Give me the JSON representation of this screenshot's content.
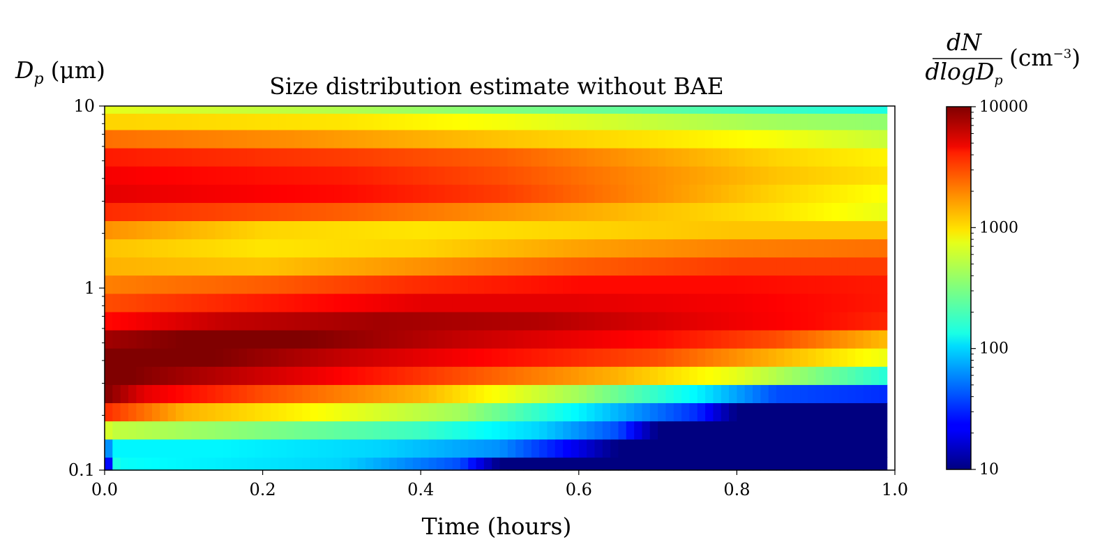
{
  "chart_data": {
    "type": "heatmap",
    "title": "Size distribution estimate without BAE",
    "xlabel": "Time (hours)",
    "ylabel": {
      "symbol": "D",
      "subscript": "p",
      "unit": "(μm)"
    },
    "colorbar_label": {
      "numerator": "dN",
      "denominator_prefix": "dlogD",
      "denominator_subscript": "p",
      "unit": "(cm",
      "unit_exponent": "−3",
      "unit_close": ")"
    },
    "colormap": "jet",
    "xlim": [
      0.0,
      1.0
    ],
    "ylim": [
      0.1,
      10
    ],
    "yscale": "log",
    "color_scale": "log",
    "clim": [
      10,
      10000
    ],
    "x_ticks": [
      "0.0",
      "0.2",
      "0.4",
      "0.6",
      "0.8",
      "1.0"
    ],
    "y_ticks": [
      "0.1",
      "1",
      "10"
    ],
    "colorbar_ticks": [
      "10",
      "100",
      "1000",
      "10000"
    ],
    "grid": false,
    "time_columns": 100,
    "diameter_bins_um": [
      0.105,
      0.132,
      0.166,
      0.209,
      0.263,
      0.331,
      0.417,
      0.525,
      0.661,
      0.832,
      1.05,
      1.32,
      1.66,
      2.09,
      2.63,
      3.31,
      4.17,
      5.25,
      6.61,
      8.32,
      10.0
    ],
    "log10_concentration_profiles": [
      {
        "d": 0.105,
        "pts": [
          [
            0.0,
            1.0
          ],
          [
            0.015,
            2.2
          ],
          [
            0.02,
            2.15
          ],
          [
            0.1,
            2.1
          ],
          [
            0.3,
            2.0
          ],
          [
            0.45,
            1.6
          ],
          [
            0.5,
            1.0
          ],
          [
            1.0,
            1.0
          ]
        ]
      },
      {
        "d": 0.132,
        "pts": [
          [
            0.0,
            1.5
          ],
          [
            0.01,
            2.1
          ],
          [
            0.15,
            2.1
          ],
          [
            0.35,
            2.0
          ],
          [
            0.5,
            1.8
          ],
          [
            0.6,
            1.3
          ],
          [
            0.65,
            1.0
          ],
          [
            1.0,
            1.0
          ]
        ]
      },
      {
        "d": 0.166,
        "pts": [
          [
            0.0,
            2.8
          ],
          [
            0.01,
            2.7
          ],
          [
            0.2,
            2.5
          ],
          [
            0.4,
            2.3
          ],
          [
            0.55,
            2.0
          ],
          [
            0.65,
            1.6
          ],
          [
            0.7,
            1.0
          ],
          [
            1.0,
            1.0
          ]
        ]
      },
      {
        "d": 0.209,
        "pts": [
          [
            0.0,
            3.5
          ],
          [
            0.1,
            3.1
          ],
          [
            0.25,
            2.9
          ],
          [
            0.45,
            2.6
          ],
          [
            0.6,
            2.1
          ],
          [
            0.75,
            1.5
          ],
          [
            0.8,
            1.0
          ],
          [
            1.0,
            1.0
          ]
        ]
      },
      {
        "d": 0.263,
        "pts": [
          [
            0.0,
            4.0
          ],
          [
            0.05,
            3.7
          ],
          [
            0.2,
            3.4
          ],
          [
            0.4,
            3.1
          ],
          [
            0.6,
            2.6
          ],
          [
            0.75,
            2.1
          ],
          [
            0.85,
            1.6
          ],
          [
            1.0,
            1.5
          ]
        ]
      },
      {
        "d": 0.331,
        "pts": [
          [
            0.0,
            4.05
          ],
          [
            0.1,
            3.9
          ],
          [
            0.25,
            3.7
          ],
          [
            0.45,
            3.4
          ],
          [
            0.65,
            3.1
          ],
          [
            0.8,
            2.8
          ],
          [
            0.9,
            2.5
          ],
          [
            1.0,
            2.2
          ]
        ]
      },
      {
        "d": 0.417,
        "pts": [
          [
            0.0,
            4.1
          ],
          [
            0.1,
            4.05
          ],
          [
            0.3,
            3.8
          ],
          [
            0.5,
            3.6
          ],
          [
            0.7,
            3.4
          ],
          [
            0.85,
            3.1
          ],
          [
            1.0,
            2.8
          ]
        ]
      },
      {
        "d": 0.525,
        "pts": [
          [
            0.0,
            3.9
          ],
          [
            0.1,
            4.0
          ],
          [
            0.25,
            4.0
          ],
          [
            0.45,
            3.8
          ],
          [
            0.7,
            3.6
          ],
          [
            0.85,
            3.4
          ],
          [
            1.0,
            3.05
          ]
        ]
      },
      {
        "d": 0.661,
        "pts": [
          [
            0.0,
            3.6
          ],
          [
            0.15,
            3.8
          ],
          [
            0.35,
            3.9
          ],
          [
            0.55,
            3.85
          ],
          [
            0.75,
            3.7
          ],
          [
            0.9,
            3.6
          ],
          [
            1.0,
            3.5
          ]
        ]
      },
      {
        "d": 0.832,
        "pts": [
          [
            0.0,
            3.4
          ],
          [
            0.2,
            3.55
          ],
          [
            0.4,
            3.7
          ],
          [
            0.6,
            3.7
          ],
          [
            0.8,
            3.65
          ],
          [
            1.0,
            3.55
          ]
        ]
      },
      {
        "d": 1.05,
        "pts": [
          [
            0.0,
            3.25
          ],
          [
            0.2,
            3.35
          ],
          [
            0.4,
            3.5
          ],
          [
            0.6,
            3.6
          ],
          [
            0.8,
            3.6
          ],
          [
            1.0,
            3.55
          ]
        ]
      },
      {
        "d": 1.32,
        "pts": [
          [
            0.0,
            3.1
          ],
          [
            0.2,
            3.05
          ],
          [
            0.4,
            3.2
          ],
          [
            0.6,
            3.35
          ],
          [
            0.8,
            3.45
          ],
          [
            1.0,
            3.45
          ]
        ]
      },
      {
        "d": 1.66,
        "pts": [
          [
            0.0,
            3.05
          ],
          [
            0.2,
            2.95
          ],
          [
            0.4,
            3.0
          ],
          [
            0.6,
            3.15
          ],
          [
            0.8,
            3.25
          ],
          [
            1.0,
            3.3
          ]
        ]
      },
      {
        "d": 2.09,
        "pts": [
          [
            0.0,
            3.2
          ],
          [
            0.2,
            3.0
          ],
          [
            0.4,
            2.95
          ],
          [
            0.6,
            3.0
          ],
          [
            0.8,
            3.05
          ],
          [
            1.0,
            3.05
          ]
        ]
      },
      {
        "d": 2.63,
        "pts": [
          [
            0.0,
            3.5
          ],
          [
            0.3,
            3.35
          ],
          [
            0.5,
            3.2
          ],
          [
            0.7,
            3.05
          ],
          [
            0.85,
            2.95
          ],
          [
            1.0,
            2.8
          ]
        ]
      },
      {
        "d": 3.31,
        "pts": [
          [
            0.0,
            3.7
          ],
          [
            0.3,
            3.6
          ],
          [
            0.5,
            3.45
          ],
          [
            0.7,
            3.2
          ],
          [
            0.85,
            3.0
          ],
          [
            1.0,
            2.85
          ]
        ]
      },
      {
        "d": 4.17,
        "pts": [
          [
            0.0,
            3.65
          ],
          [
            0.3,
            3.55
          ],
          [
            0.5,
            3.4
          ],
          [
            0.7,
            3.2
          ],
          [
            0.85,
            3.05
          ],
          [
            1.0,
            2.95
          ]
        ]
      },
      {
        "d": 5.25,
        "pts": [
          [
            0.0,
            3.55
          ],
          [
            0.3,
            3.45
          ],
          [
            0.5,
            3.35
          ],
          [
            0.7,
            3.15
          ],
          [
            0.85,
            3.0
          ],
          [
            1.0,
            2.9
          ]
        ]
      },
      {
        "d": 6.61,
        "pts": [
          [
            0.0,
            3.3
          ],
          [
            0.25,
            3.2
          ],
          [
            0.5,
            3.05
          ],
          [
            0.7,
            2.95
          ],
          [
            0.85,
            2.85
          ],
          [
            1.0,
            2.7
          ]
        ]
      },
      {
        "d": 8.32,
        "pts": [
          [
            0.0,
            3.0
          ],
          [
            0.3,
            2.95
          ],
          [
            0.5,
            2.85
          ],
          [
            0.7,
            2.7
          ],
          [
            0.85,
            2.6
          ],
          [
            1.0,
            2.55
          ]
        ]
      },
      {
        "d": 10.0,
        "pts": [
          [
            0.0,
            2.8
          ],
          [
            0.3,
            2.65
          ],
          [
            0.5,
            2.5
          ],
          [
            0.7,
            2.4
          ],
          [
            0.85,
            2.3
          ],
          [
            1.0,
            2.2
          ]
        ]
      }
    ]
  }
}
